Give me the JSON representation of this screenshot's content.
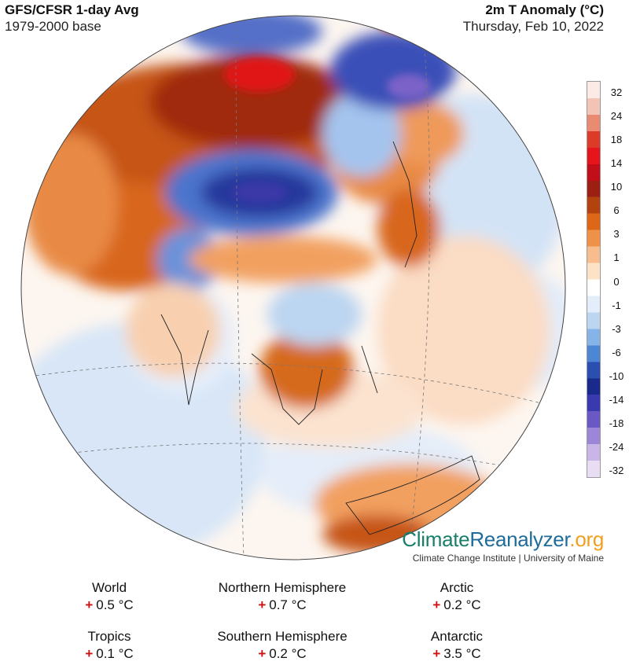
{
  "header": {
    "title": "GFS/CFSR 1-day Avg",
    "baseline": "1979-2000 base",
    "variable": "2m T Anomaly (°C)",
    "date": "Thursday, Feb 10, 2022"
  },
  "colorbar": {
    "labels": [
      "32",
      "24",
      "18",
      "14",
      "10",
      "6",
      "3",
      "1",
      "0",
      "-1",
      "-3",
      "-6",
      "-10",
      "-14",
      "-18",
      "-24",
      "-32"
    ],
    "colors": [
      "#fbeae6",
      "#f3c4b6",
      "#e98a71",
      "#dd3a2a",
      "#e6141b",
      "#c20e18",
      "#9c1f12",
      "#b3430e",
      "#dd6716",
      "#ef9247",
      "#f7bd8c",
      "#fde2c6",
      "#ffffff",
      "#e4eefa",
      "#bcd5f1",
      "#86b4e8",
      "#4d86d4",
      "#2a4fb0",
      "#1a2a8c",
      "#3a3ab0",
      "#6a58c4",
      "#9c86d8",
      "#c8b6e6",
      "#e9ddf3"
    ]
  },
  "branding": {
    "name_part1": "Climate",
    "name_part2": "Reanalyzer",
    "name_part3": ".org",
    "subtitle": "Climate Change Institute | University of Maine"
  },
  "stats": [
    {
      "label": "World",
      "sign": "+",
      "value": "0.5 °C"
    },
    {
      "label": "Northern Hemisphere",
      "sign": "+",
      "value": "0.7 °C"
    },
    {
      "label": "Arctic",
      "sign": "+",
      "value": "0.2 °C"
    },
    {
      "label": "Tropics",
      "sign": "+",
      "value": "0.1 °C"
    },
    {
      "label": "Southern Hemisphere",
      "sign": "+",
      "value": "0.2 °C"
    },
    {
      "label": "Antarctic",
      "sign": "+",
      "value": "3.5 °C"
    }
  ]
}
